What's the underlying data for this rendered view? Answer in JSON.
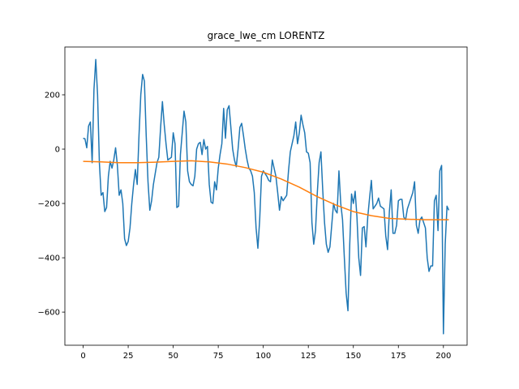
{
  "chart_data": {
    "type": "line",
    "title": "grace_lwe_cm LORENTZ",
    "x": [
      0,
      1,
      2,
      3,
      4,
      5,
      6,
      7,
      8,
      9,
      10,
      11,
      12,
      13,
      14,
      15,
      16,
      17,
      18,
      19,
      20,
      21,
      22,
      23,
      24,
      25,
      26,
      27,
      28,
      29,
      30,
      31,
      32,
      33,
      34,
      35,
      36,
      37,
      38,
      39,
      40,
      41,
      42,
      43,
      44,
      45,
      46,
      47,
      48,
      49,
      50,
      51,
      52,
      53,
      54,
      55,
      56,
      57,
      58,
      59,
      60,
      61,
      62,
      63,
      64,
      65,
      66,
      67,
      68,
      69,
      70,
      71,
      72,
      73,
      74,
      75,
      76,
      77,
      78,
      79,
      80,
      81,
      82,
      83,
      84,
      85,
      86,
      87,
      88,
      89,
      90,
      91,
      92,
      93,
      94,
      95,
      96,
      97,
      98,
      99,
      100,
      101,
      102,
      103,
      104,
      105,
      106,
      107,
      108,
      109,
      110,
      111,
      112,
      113,
      114,
      115,
      116,
      117,
      118,
      119,
      120,
      121,
      122,
      123,
      124,
      125,
      126,
      127,
      128,
      129,
      130,
      131,
      132,
      133,
      134,
      135,
      136,
      137,
      138,
      139,
      140,
      141,
      142,
      143,
      144,
      145,
      146,
      147,
      148,
      149,
      150,
      151,
      152,
      153,
      154,
      155,
      156,
      157,
      158,
      159,
      160,
      161,
      162,
      163,
      164,
      165,
      166,
      167,
      168,
      169,
      170,
      171,
      172,
      173,
      174,
      175,
      176,
      177,
      178,
      179,
      180,
      181,
      182,
      183,
      184,
      185,
      186,
      187,
      188,
      189,
      190,
      191,
      192,
      193,
      194,
      195,
      196,
      197,
      198,
      199,
      200,
      201,
      202,
      203
    ],
    "series": [
      {
        "color": "#1f77b4",
        "values": [
          40,
          38,
          5,
          85,
          100,
          -50,
          220,
          330,
          200,
          -50,
          -170,
          -160,
          -230,
          -215,
          -100,
          -45,
          -70,
          -40,
          5,
          -60,
          -170,
          -150,
          -200,
          -330,
          -355,
          -340,
          -290,
          -200,
          -130,
          -75,
          -130,
          50,
          200,
          275,
          250,
          50,
          -120,
          -225,
          -190,
          -130,
          -90,
          -50,
          -30,
          80,
          175,
          90,
          20,
          -40,
          -35,
          -30,
          60,
          20,
          -215,
          -210,
          -20,
          60,
          140,
          100,
          -80,
          -120,
          -130,
          -135,
          -100,
          0,
          20,
          25,
          -20,
          35,
          0,
          10,
          -130,
          -195,
          -200,
          -120,
          -150,
          -70,
          -20,
          20,
          150,
          40,
          145,
          160,
          80,
          0,
          -40,
          -65,
          0,
          80,
          95,
          50,
          0,
          -40,
          -70,
          -80,
          -100,
          -160,
          -290,
          -365,
          -260,
          -100,
          -80,
          -90,
          -100,
          -115,
          -120,
          -40,
          -70,
          -100,
          -160,
          -225,
          -175,
          -190,
          -180,
          -170,
          -80,
          -10,
          20,
          50,
          100,
          20,
          60,
          125,
          90,
          60,
          -10,
          -15,
          -50,
          -270,
          -350,
          -300,
          -160,
          -50,
          -10,
          -150,
          -270,
          -350,
          -380,
          -360,
          -280,
          -200,
          -225,
          -235,
          -80,
          -200,
          -260,
          -400,
          -530,
          -595,
          -350,
          -165,
          -200,
          -155,
          -250,
          -400,
          -465,
          -290,
          -285,
          -360,
          -250,
          -180,
          -115,
          -220,
          -210,
          -200,
          -180,
          -210,
          -215,
          -220,
          -320,
          -370,
          -230,
          -150,
          -310,
          -310,
          -280,
          -190,
          -185,
          -185,
          -250,
          -260,
          -220,
          -200,
          -180,
          -160,
          -120,
          -280,
          -310,
          -260,
          -250,
          -270,
          -290,
          -400,
          -450,
          -430,
          -430,
          -190,
          -170,
          -300,
          -80,
          -60,
          -680,
          -350,
          -210,
          -225
        ]
      },
      {
        "color": "#ff7f0e",
        "x": [
          0,
          10,
          20,
          30,
          40,
          50,
          60,
          70,
          80,
          90,
          100,
          110,
          120,
          130,
          140,
          150,
          160,
          170,
          180,
          190,
          200,
          203
        ],
        "values": [
          -45,
          -47,
          -50,
          -50,
          -48,
          -45,
          -43,
          -47,
          -55,
          -68,
          -85,
          -110,
          -140,
          -175,
          -205,
          -230,
          -245,
          -255,
          -258,
          -260,
          -260,
          -260
        ]
      }
    ],
    "xlim": [
      -10.15,
      213.15
    ],
    "ylim": [
      -722,
      376
    ],
    "xticks": [
      0,
      25,
      50,
      75,
      100,
      125,
      150,
      175,
      200
    ],
    "yticks": [
      {
        "value": -600,
        "label": "−600"
      },
      {
        "value": -400,
        "label": "−400"
      },
      {
        "value": -200,
        "label": "−200"
      },
      0,
      200
    ]
  }
}
